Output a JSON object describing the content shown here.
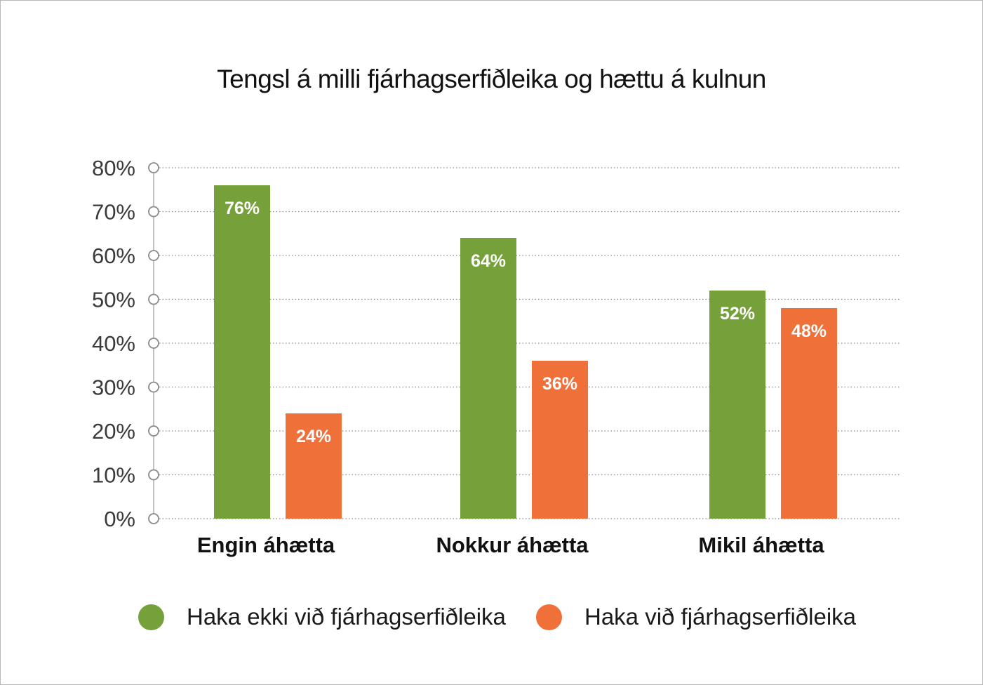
{
  "chart_data": {
    "type": "bar",
    "title": "Tengsl á milli fjárhagserfiðleika og hættu á kulnun",
    "categories": [
      "Engin áhætta",
      "Nokkur áhætta",
      "Mikil áhætta"
    ],
    "series": [
      {
        "name": "Haka ekki við fjárhagserfiðleika",
        "values": [
          76,
          64,
          52
        ],
        "labels": [
          "76%",
          "64%",
          "52%"
        ],
        "color": "#76a03a"
      },
      {
        "name": "Haka við fjárhagserfiðleika",
        "values": [
          24,
          36,
          48
        ],
        "labels": [
          "24%",
          "36%",
          "48%"
        ],
        "color": "#f0703a"
      }
    ],
    "ylim": [
      0,
      80
    ],
    "yticks": [
      0,
      10,
      20,
      30,
      40,
      50,
      60,
      70,
      80
    ],
    "ytick_labels": [
      "0%",
      "10%",
      "20%",
      "30%",
      "40%",
      "50%",
      "60%",
      "70%",
      "80%"
    ],
    "grid": true,
    "legend_position": "bottom"
  }
}
